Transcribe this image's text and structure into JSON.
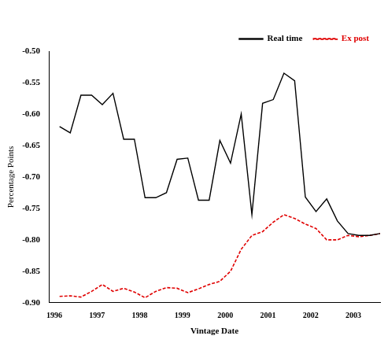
{
  "chart_data": {
    "type": "line",
    "x_label": "Vintage Date",
    "y_label": "Percentage Points",
    "x": [
      1996.125,
      1996.375,
      1996.625,
      1996.875,
      1997.125,
      1997.375,
      1997.625,
      1997.875,
      1998.125,
      1998.375,
      1998.625,
      1998.875,
      1999.125,
      1999.375,
      1999.625,
      1999.875,
      2000.125,
      2000.375,
      2000.625,
      2000.875,
      2001.125,
      2001.375,
      2001.625,
      2001.875,
      2002.125,
      2002.375,
      2002.625,
      2002.875,
      2003.125,
      2003.375,
      2003.625
    ],
    "series": [
      {
        "name": "Real time",
        "color": "#000000",
        "line_style": "solid",
        "values": [
          -0.62,
          -0.63,
          -0.57,
          -0.57,
          -0.585,
          -0.567,
          -0.64,
          -0.64,
          -0.733,
          -0.733,
          -0.725,
          -0.672,
          -0.67,
          -0.737,
          -0.737,
          -0.642,
          -0.678,
          -0.6,
          -0.76,
          -0.583,
          -0.577,
          -0.535,
          -0.547,
          -0.732,
          -0.755,
          -0.735,
          -0.77,
          -0.79,
          -0.793,
          -0.793,
          -0.79
        ]
      },
      {
        "name": "Ex post",
        "color": "#e00000",
        "line_style": "dashed",
        "values": [
          -0.89,
          -0.889,
          -0.891,
          -0.882,
          -0.871,
          -0.882,
          -0.877,
          -0.883,
          -0.892,
          -0.882,
          -0.876,
          -0.877,
          -0.884,
          -0.878,
          -0.871,
          -0.866,
          -0.85,
          -0.815,
          -0.793,
          -0.787,
          -0.772,
          -0.76,
          -0.766,
          -0.775,
          -0.782,
          -0.8,
          -0.8,
          -0.793,
          -0.795,
          -0.793,
          -0.79
        ]
      }
    ],
    "xlim": [
      1995.875,
      2003.625
    ],
    "xticks": [
      1996,
      1997,
      1998,
      1999,
      2000,
      2001,
      2002,
      2003
    ],
    "ylim": [
      -0.9,
      -0.5
    ],
    "yticks": [
      {
        "value": -0.9,
        "label": "-0.90"
      },
      {
        "value": -0.85,
        "label": "-0.85"
      },
      {
        "value": -0.8,
        "label": "-0.80"
      },
      {
        "value": -0.75,
        "label": "-0.75"
      },
      {
        "value": -0.7,
        "label": "-0.70"
      },
      {
        "value": -0.65,
        "label": "-0.65"
      },
      {
        "value": -0.6,
        "label": "-0.60"
      },
      {
        "value": -0.55,
        "label": "-0.55"
      },
      {
        "value": -0.5,
        "label": "-0.50"
      }
    ],
    "grid": false,
    "legend": "upper right",
    "marker": "none"
  }
}
